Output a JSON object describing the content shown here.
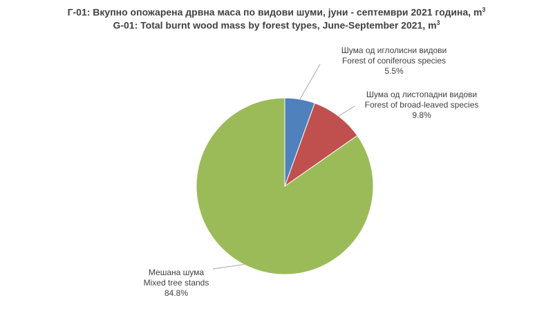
{
  "chart_data": {
    "type": "pie",
    "title": "Г-01: Вкупно опожарена дрвна маса по видови шуми, јуни - септември 2021 година, m",
    "title_unit_sup": "3",
    "subtitle": "G-01: Total burnt wood mass by forest types, June-September 2021, m",
    "subtitle_unit_sup": "3",
    "start_angle": "12 o'clock, clockwise",
    "slices": [
      {
        "label_mk": "Шума од иглолисни видови",
        "label_en": "Forest of coniferous species",
        "value": 5.5,
        "value_label": "5.5%",
        "color": "#4f81bd"
      },
      {
        "label_mk": "Шума од листопадни видови",
        "label_en": "Forest of broad-leaved species",
        "value": 9.8,
        "value_label": "9.8%",
        "color": "#c0504d"
      },
      {
        "label_mk": "Мешана шума",
        "label_en": "Mixed tree stands",
        "value": 84.8,
        "value_label": "84.8%",
        "color": "#9bbb59"
      }
    ]
  }
}
